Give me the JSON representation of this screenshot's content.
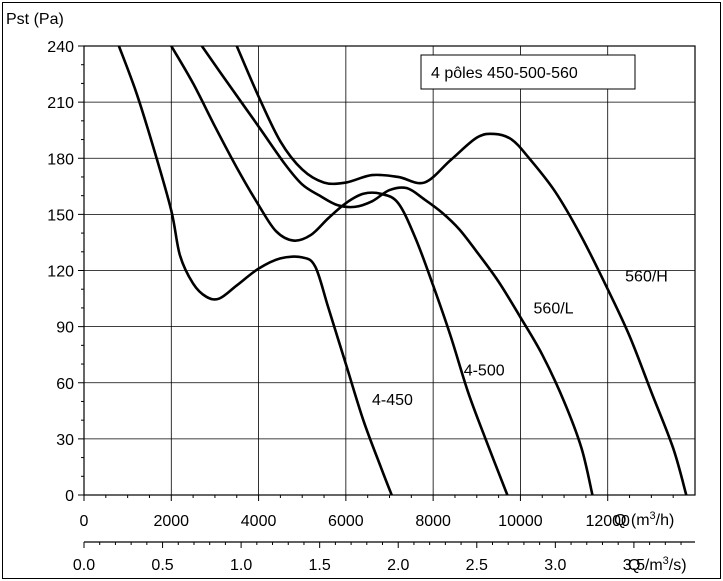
{
  "chart_data": {
    "type": "line",
    "title": "",
    "annotation": "4 pôles 450-500-560",
    "ylabel": "Pst (Pa)",
    "xlabel_primary": "Q (m",
    "xlabel_primary_sup": "3",
    "xlabel_primary_end": "/h)",
    "xlabel_secondary": "Q /m",
    "xlabel_secondary_sup": "3",
    "xlabel_secondary_end": "/s)",
    "xlim": [
      0,
      14000
    ],
    "ylim": [
      0,
      240
    ],
    "grid": true,
    "x_ticks": [
      {
        "value": 0,
        "label": "0"
      },
      {
        "value": 2000,
        "label": "2000"
      },
      {
        "value": 4000,
        "label": "4000"
      },
      {
        "value": 6000,
        "label": "6000"
      },
      {
        "value": 8000,
        "label": "8000"
      },
      {
        "value": 10000,
        "label": "10000"
      },
      {
        "value": 12000,
        "label": "12000"
      }
    ],
    "x2_ticks": [
      {
        "value": 0.0,
        "label": "0.0"
      },
      {
        "value": 0.5,
        "label": "0.5"
      },
      {
        "value": 1.0,
        "label": "1.0"
      },
      {
        "value": 1.5,
        "label": "1.5"
      },
      {
        "value": 2.0,
        "label": "2.0"
      },
      {
        "value": 2.5,
        "label": "2.5"
      },
      {
        "value": 3.0,
        "label": "3.0"
      },
      {
        "value": 3.5,
        "label": "3.5"
      }
    ],
    "y_ticks": [
      {
        "value": 0,
        "label": "0"
      },
      {
        "value": 30,
        "label": "30"
      },
      {
        "value": 60,
        "label": "60"
      },
      {
        "value": 90,
        "label": "90"
      },
      {
        "value": 120,
        "label": "120"
      },
      {
        "value": 150,
        "label": "150"
      },
      {
        "value": 180,
        "label": "180"
      },
      {
        "value": 210,
        "label": "210"
      },
      {
        "value": 240,
        "label": "240"
      }
    ],
    "series": [
      {
        "name": "4-450",
        "points": [
          [
            800,
            240
          ],
          [
            1200,
            215
          ],
          [
            1600,
            185
          ],
          [
            2000,
            152
          ],
          [
            2200,
            128
          ],
          [
            2500,
            113
          ],
          [
            2800,
            106
          ],
          [
            3100,
            105
          ],
          [
            3500,
            112
          ],
          [
            4000,
            121
          ],
          [
            4500,
            126.5
          ],
          [
            5000,
            127
          ],
          [
            5300,
            122
          ],
          [
            5600,
            100
          ],
          [
            6000,
            70
          ],
          [
            6400,
            40
          ],
          [
            6800,
            15
          ],
          [
            7050,
            0
          ]
        ]
      },
      {
        "name": "4-500",
        "points": [
          [
            2000,
            240
          ],
          [
            2500,
            220
          ],
          [
            3000,
            197
          ],
          [
            3500,
            175
          ],
          [
            4000,
            155
          ],
          [
            4400,
            141
          ],
          [
            4800,
            136
          ],
          [
            5200,
            139
          ],
          [
            5600,
            148
          ],
          [
            6000,
            156
          ],
          [
            6400,
            161
          ],
          [
            6800,
            161
          ],
          [
            7200,
            156
          ],
          [
            7600,
            137
          ],
          [
            8000,
            112
          ],
          [
            8400,
            85
          ],
          [
            8800,
            55
          ],
          [
            9200,
            30
          ],
          [
            9700,
            0
          ]
        ]
      },
      {
        "name": "560/L",
        "points": [
          [
            2700,
            240
          ],
          [
            3300,
            220
          ],
          [
            4000,
            197
          ],
          [
            4600,
            177
          ],
          [
            5000,
            166
          ],
          [
            5400,
            160
          ],
          [
            5800,
            155
          ],
          [
            6200,
            154
          ],
          [
            6600,
            157
          ],
          [
            7000,
            163
          ],
          [
            7400,
            164
          ],
          [
            7800,
            158
          ],
          [
            8200,
            151
          ],
          [
            8600,
            142
          ],
          [
            9000,
            130
          ],
          [
            9500,
            114
          ],
          [
            10000,
            95
          ],
          [
            10500,
            75
          ],
          [
            11000,
            50
          ],
          [
            11400,
            25
          ],
          [
            11650,
            0
          ]
        ]
      },
      {
        "name": "560/H",
        "points": [
          [
            3500,
            240
          ],
          [
            4000,
            213
          ],
          [
            4500,
            189
          ],
          [
            5000,
            174
          ],
          [
            5500,
            167
          ],
          [
            6000,
            167
          ],
          [
            6600,
            171
          ],
          [
            7200,
            170
          ],
          [
            7800,
            167
          ],
          [
            8400,
            179
          ],
          [
            9000,
            191
          ],
          [
            9400,
            193
          ],
          [
            9800,
            190
          ],
          [
            10200,
            180
          ],
          [
            10800,
            162
          ],
          [
            11400,
            138
          ],
          [
            12000,
            110
          ],
          [
            12500,
            85
          ],
          [
            13000,
            55
          ],
          [
            13500,
            25
          ],
          [
            13800,
            0
          ]
        ]
      }
    ],
    "series_labels": [
      {
        "series": "4-450",
        "text": "4-450",
        "x": 6600,
        "y": 48
      },
      {
        "series": "4-500",
        "text": "4-500",
        "x": 8700,
        "y": 64
      },
      {
        "series": "560/L",
        "text": "560/L",
        "x": 10300,
        "y": 97
      },
      {
        "series": "560/H",
        "text": "560/H",
        "x": 12400,
        "y": 114
      }
    ],
    "line_color": "#000000",
    "grid_color": "#000000"
  }
}
